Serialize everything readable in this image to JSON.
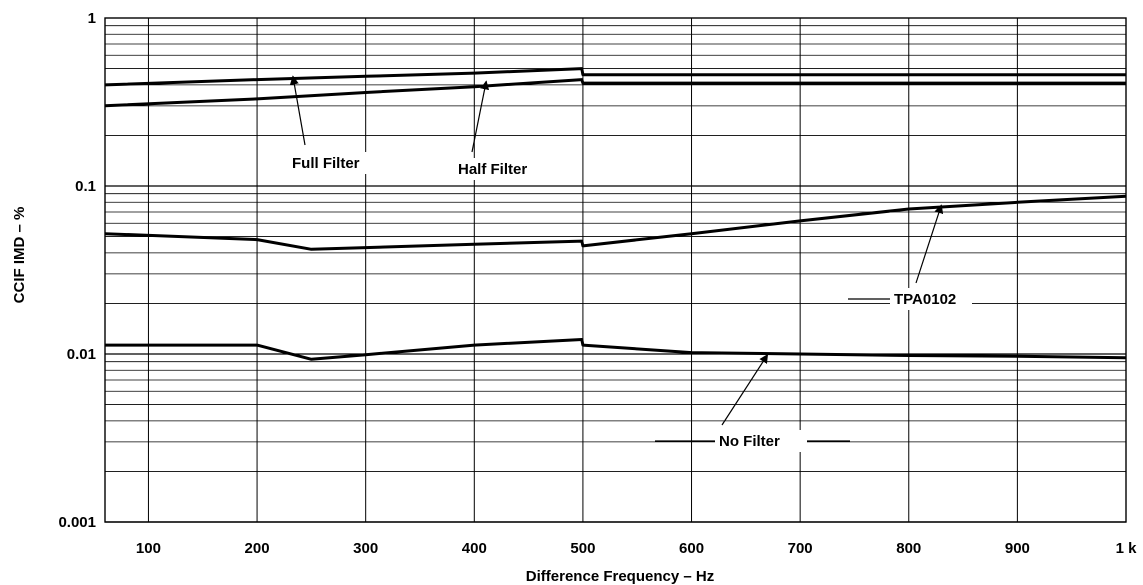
{
  "chart_data": {
    "type": "line",
    "xlabel": "Difference  Frequency – Hz",
    "ylabel": "CCIF IMD – %",
    "xlim": [
      60,
      1000
    ],
    "ylim": [
      0.001,
      1
    ],
    "yscale": "log",
    "grid": true,
    "x_tick_values": [
      100,
      200,
      300,
      400,
      500,
      600,
      700,
      800,
      900,
      1000
    ],
    "x_tick_labels": [
      "100",
      "200",
      "300",
      "400",
      "500",
      "600",
      "700",
      "800",
      "900",
      "1 k"
    ],
    "y_tick_values": [
      0.001,
      0.01,
      0.1,
      1
    ],
    "y_tick_labels": [
      "0.001",
      "0.01",
      "0.1",
      "1"
    ],
    "series": [
      {
        "name": "Full Filter",
        "x": [
          60,
          200,
          300,
          400,
          499,
          500,
          600,
          700,
          800,
          900,
          1000
        ],
        "y": [
          0.4,
          0.43,
          0.45,
          0.47,
          0.5,
          0.46,
          0.46,
          0.46,
          0.46,
          0.46,
          0.46
        ]
      },
      {
        "name": "Half Filter",
        "x": [
          60,
          200,
          300,
          400,
          499,
          500,
          600,
          700,
          800,
          900,
          1000
        ],
        "y": [
          0.3,
          0.33,
          0.36,
          0.39,
          0.43,
          0.41,
          0.41,
          0.41,
          0.41,
          0.41,
          0.41
        ]
      },
      {
        "name": "TPA0102",
        "x": [
          60,
          200,
          250,
          300,
          400,
          499,
          500,
          600,
          700,
          800,
          900,
          1000
        ],
        "y": [
          0.052,
          0.048,
          0.042,
          0.043,
          0.045,
          0.047,
          0.044,
          0.052,
          0.062,
          0.073,
          0.08,
          0.087
        ]
      },
      {
        "name": "No Filter",
        "x": [
          60,
          200,
          250,
          300,
          400,
          499,
          500,
          600,
          700,
          800,
          900,
          1000
        ],
        "y": [
          0.0113,
          0.0113,
          0.0093,
          0.0099,
          0.0113,
          0.0122,
          0.0113,
          0.0102,
          0.01,
          0.0098,
          0.0097,
          0.0095
        ]
      }
    ],
    "annotations": [
      {
        "text": "Full Filter",
        "series": "Full Filter",
        "arrow_to": [
          233,
          0.45
        ]
      },
      {
        "text": "Half Filter",
        "series": "Half Filter",
        "arrow_to": [
          411,
          0.42
        ]
      },
      {
        "text": "TPA0102",
        "series": "TPA0102",
        "arrow_to": [
          830,
          0.077
        ]
      },
      {
        "text": "No Filter",
        "series": "No Filter",
        "arrow_to": [
          670,
          0.0099
        ]
      }
    ]
  }
}
